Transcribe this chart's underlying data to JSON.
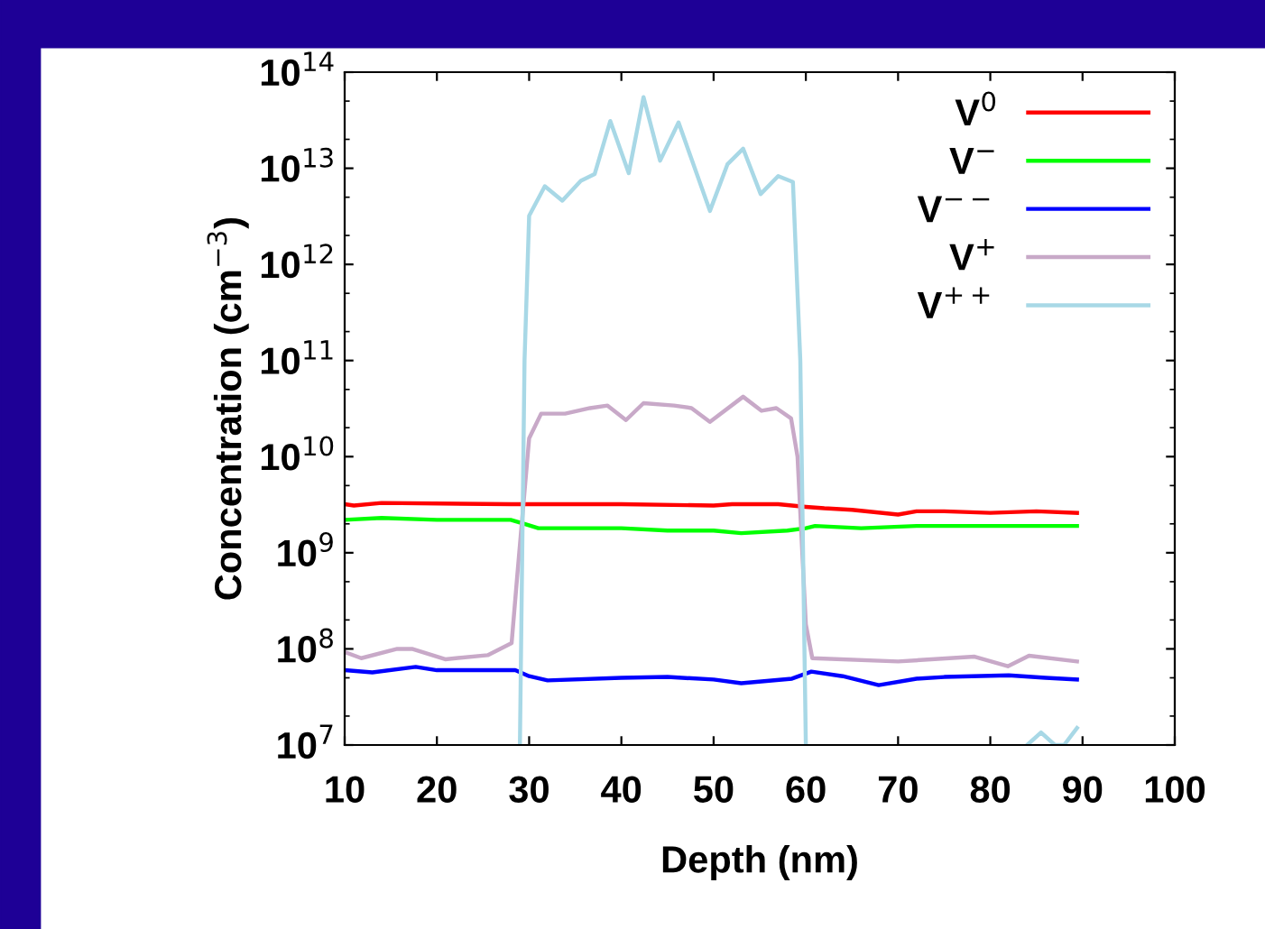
{
  "chart_data": {
    "type": "line",
    "xlabel": "Depth (nm)",
    "ylabel": "Concentration (cm$^{−3}$)",
    "log": "y",
    "xlim": [
      10,
      100
    ],
    "xticks": [
      10,
      20,
      30,
      40,
      50,
      60,
      70,
      80,
      90,
      100
    ],
    "ylim": [
      10000000.0,
      100000000000000.0
    ],
    "yticks": [
      {
        "value": 10000000.0,
        "label": "10$^{7}$"
      },
      {
        "value": 100000000.0,
        "label": "10$^{8}$"
      },
      {
        "value": 1000000000.0,
        "label": "10$^{9}$"
      },
      {
        "value": 10000000000.0,
        "label": "10$^{10}$"
      },
      {
        "value": 100000000000.0,
        "label": "10$^{11}$"
      },
      {
        "value": 1000000000000.0,
        "label": "10$^{12}$"
      },
      {
        "value": 10000000000000.0,
        "label": "10$^{13}$"
      },
      {
        "value": 100000000000000.0,
        "label": "10$^{14}$"
      }
    ],
    "grid": false,
    "legend": "top right",
    "marker": "none",
    "line_style": "solid",
    "series": [
      {
        "name": "V$^{0}$",
        "color": "#ff0000",
        "x": [
          10,
          11,
          14,
          28,
          40,
          50,
          52,
          54,
          57,
          60,
          62,
          65,
          70,
          72,
          75,
          80,
          85,
          89.4
        ],
        "values": [
          3200000000.0,
          3100000000.0,
          3300000000.0,
          3200000000.0,
          3200000000.0,
          3100000000.0,
          3200000000.0,
          3200000000.0,
          3200000000.0,
          3000000000.0,
          2900000000.0,
          2800000000.0,
          2500000000.0,
          2700000000.0,
          2700000000.0,
          2600000000.0,
          2700000000.0,
          2600000000.0
        ]
      },
      {
        "name": "V$^{−}$",
        "color": "#00ff00",
        "x": [
          10,
          14,
          20,
          28,
          29.5,
          31,
          36,
          40,
          45,
          50,
          53,
          58,
          60,
          61,
          66,
          72,
          80,
          89.4
        ],
        "values": [
          2200000000.0,
          2300000000.0,
          2200000000.0,
          2200000000.0,
          2000000000.0,
          1800000000.0,
          1800000000.0,
          1800000000.0,
          1700000000.0,
          1700000000.0,
          1600000000.0,
          1700000000.0,
          1800000000.0,
          1900000000.0,
          1800000000.0,
          1900000000.0,
          1900000000.0,
          1900000000.0
        ]
      },
      {
        "name": "V$^{−−}$",
        "color": "#0000ff",
        "x": [
          10,
          13,
          17.7,
          20,
          28.5,
          30,
          32,
          40,
          45,
          50,
          53,
          58.5,
          60.6,
          64,
          67.9,
          72,
          75,
          82,
          86,
          89.4
        ],
        "values": [
          60000000.0,
          57000000.0,
          65000000.0,
          60000000.0,
          60000000.0,
          52000000.0,
          47000000.0,
          50000000.0,
          51000000.0,
          48000000.0,
          44000000.0,
          49000000.0,
          58000000.0,
          52000000.0,
          42000000.0,
          49000000.0,
          51000000.0,
          53000000.0,
          50000000.0,
          48000000.0
        ]
      },
      {
        "name": "V$^{+}$",
        "color": "#c8a9c8",
        "x": [
          10.1,
          11.8,
          15.7,
          17.3,
          20.9,
          25.5,
          28.1,
          28.7,
          30.0,
          31.3,
          33.9,
          36.6,
          38.5,
          40.5,
          42.4,
          45.7,
          47.6,
          49.6,
          53.2,
          55.2,
          56.8,
          58.4,
          59.1,
          60.0,
          60.7,
          70,
          78.3,
          81.9,
          84.2,
          89.4
        ],
        "values": [
          92000000.0,
          80000000.0,
          100000000.0,
          100000000.0,
          78000000.0,
          86000000.0,
          115000000.0,
          560000000.0,
          15500000000.0,
          28000000000.0,
          28000000000.0,
          32000000000.0,
          34000000000.0,
          24000000000.0,
          36000000000.0,
          34000000000.0,
          32000000000.0,
          23000000000.0,
          42000000000.0,
          30000000000.0,
          32000000000.0,
          25000000000.0,
          10000000000.0,
          180000000.0,
          80000000.0,
          74000000.0,
          83000000.0,
          66000000.0,
          85000000.0,
          74000000.0
        ]
      },
      {
        "name": "V$^{++}$",
        "color": "#a8d8e6",
        "x": [
          29.0,
          29.5,
          30.0,
          31.7,
          33.6,
          35.6,
          37.1,
          38.8,
          40.8,
          42.4,
          44.2,
          46.2,
          49.6,
          51.5,
          53.2,
          55.1,
          57.0,
          58.6,
          59.4,
          60.0,
          61,
          84,
          85.5,
          87,
          88,
          89.4
        ],
        "values": [
          10000000.0,
          100000000000.0,
          3200000000000.0,
          6500000000000.0,
          4600000000000.0,
          7400000000000.0,
          8700000000000.0,
          31000000000000.0,
          8900000000000.0,
          55000000000000.0,
          12000000000000.0,
          30000000000000.0,
          3600000000000.0,
          11000000000000.0,
          16000000000000.0,
          5400000000000.0,
          8300000000000.0,
          7200000000000.0,
          100000000000.0,
          10000000.0,
          null,
          10000000.0,
          13500000.0,
          10000000.0,
          10000000.0,
          15000000.0
        ]
      }
    ]
  }
}
